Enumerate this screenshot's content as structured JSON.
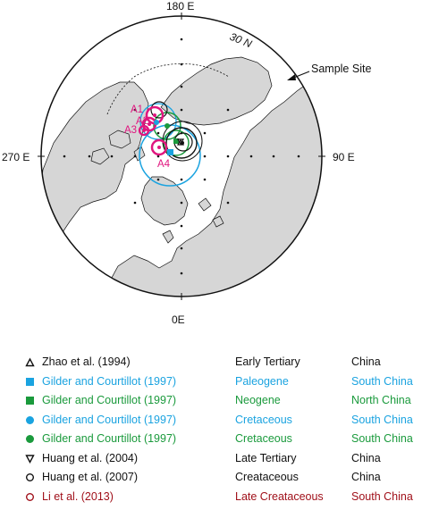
{
  "map": {
    "label_top": "180 E",
    "label_bottom": "0E",
    "label_left": "270 E",
    "label_right": "90 E",
    "lat_label": "30 N",
    "site_label": "Sample Site",
    "pole_labels": [
      "A1",
      "A2",
      "A3",
      "A4"
    ],
    "colors": {
      "land": "#d6d6d6",
      "outline": "#111111",
      "magenta": "#e0167f",
      "cyan": "#1aa3e0",
      "green": "#1a9a3c",
      "black": "#111111"
    }
  },
  "legend": {
    "rows": [
      {
        "name": "Zhao et al. (1994)",
        "age": "Early Tertiary",
        "region": "China",
        "color": "#111111",
        "symbol": "triangle-up-open"
      },
      {
        "name": "Gilder and Courtillot (1997)",
        "age": "Paleogene",
        "region": "South China",
        "color": "#1aa3e0",
        "symbol": "square-filled"
      },
      {
        "name": "Gilder and Courtillot (1997)",
        "age": "Neogene",
        "region": "North China",
        "color": "#1a9a3c",
        "symbol": "square-filled"
      },
      {
        "name": "Gilder and Courtillot (1997)",
        "age": "Cretaceous",
        "region": "South China",
        "color": "#1aa3e0",
        "symbol": "circle-filled"
      },
      {
        "name": "Gilder and Courtillot (1997)",
        "age": "Cretaceous",
        "region": "South China",
        "color": "#1a9a3c",
        "symbol": "circle-filled"
      },
      {
        "name": "Huang et al. (2004)",
        "age": "Late Tertiary",
        "region": "China",
        "color": "#111111",
        "symbol": "triangle-down-open"
      },
      {
        "name": "Huang et al. (2007)",
        "age": "Creataceous",
        "region": "China",
        "color": "#111111",
        "symbol": "circle-open"
      },
      {
        "name": "Li et al. (2013)",
        "age": "Late Creataceous",
        "region": "South China",
        "color": "#a0101a",
        "symbol": "circle-open"
      }
    ]
  }
}
